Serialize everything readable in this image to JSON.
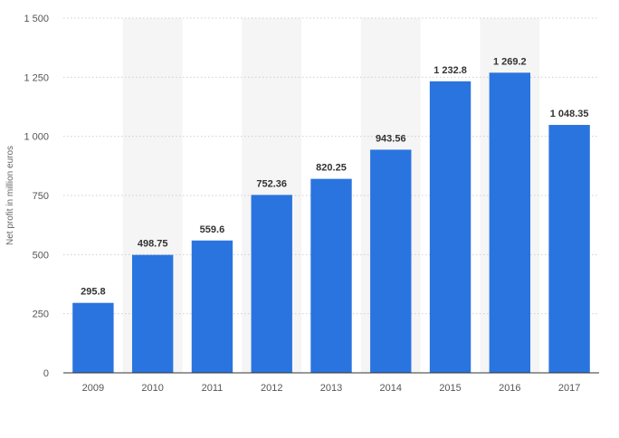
{
  "chart_data": {
    "type": "bar",
    "categories": [
      "2009",
      "2010",
      "2011",
      "2012",
      "2013",
      "2014",
      "2015",
      "2016",
      "2017"
    ],
    "values": [
      295.8,
      498.75,
      559.6,
      752.36,
      820.25,
      943.56,
      1232.8,
      1269.2,
      1048.35
    ],
    "value_labels": [
      "295.8",
      "498.75",
      "559.6",
      "752.36",
      "820.25",
      "943.56",
      "1 232.8",
      "1 269.2",
      "1 048.35"
    ],
    "title": "",
    "xlabel": "",
    "ylabel": "Net profit in million euros",
    "ylim": [
      0,
      1500
    ],
    "yticks": [
      0,
      250,
      500,
      750,
      1000,
      1250,
      1500
    ],
    "ytick_labels": [
      "0",
      "250",
      "500",
      "750",
      "1 000",
      "1 250",
      "1 500"
    ],
    "grid": true,
    "legend": "none",
    "colors": {
      "bar": "#2a74df",
      "band": "#f5f5f5",
      "grid": "#cfcfcf",
      "axis": "#333333"
    }
  }
}
